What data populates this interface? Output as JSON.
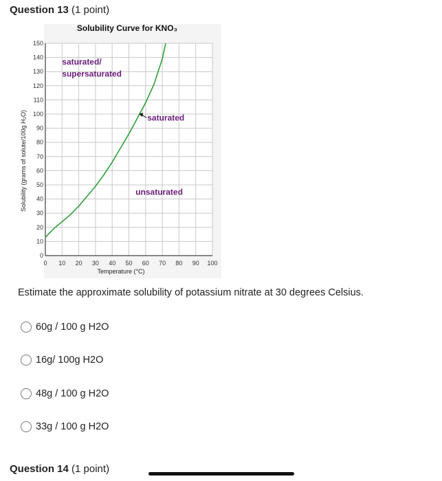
{
  "question13": {
    "title": "Question 13",
    "points": "(1 point)"
  },
  "question14": {
    "title": "Question 14",
    "points": "(1 point)"
  },
  "prompt": "Estimate the approximate solubility of potassium nitrate at 30 degrees Celsius.",
  "options": [
    "60g / 100 g H2O",
    "16g/ 100g H2O",
    "48g / 100 g H2O",
    "33g / 100 g H2O"
  ],
  "chart_data": {
    "type": "line",
    "title": "Solubility Curve for KNO₃",
    "xlabel": "Temperature (°C)",
    "ylabel": "Solubility (grams of solute/100g H₂O)",
    "xlim": [
      0,
      100
    ],
    "ylim": [
      0,
      150
    ],
    "xticks": [
      0,
      10,
      20,
      30,
      40,
      50,
      60,
      70,
      80,
      90,
      100
    ],
    "yticks": [
      0,
      10,
      20,
      30,
      40,
      50,
      60,
      70,
      80,
      90,
      100,
      110,
      120,
      130,
      140,
      150
    ],
    "grid": true,
    "series": [
      {
        "color": "#2e9e3a",
        "x": [
          0,
          5,
          10,
          15,
          20,
          25,
          30,
          35,
          40,
          45,
          50,
          55,
          60,
          65,
          70,
          72
        ],
        "y": [
          13,
          19,
          24,
          29,
          35,
          42,
          49,
          57,
          66,
          76,
          86,
          97,
          108,
          121,
          139,
          153
        ]
      }
    ],
    "annotations": [
      {
        "text": "saturated/",
        "x": 10,
        "y": 135
      },
      {
        "text": "supersaturated",
        "x": 10,
        "y": 126.5
      },
      {
        "text": "saturated",
        "x": 61,
        "y": 95.5
      },
      {
        "text": "unsaturated",
        "x": 54,
        "y": 43
      }
    ],
    "marker": {
      "x": 56,
      "y": 100
    }
  }
}
